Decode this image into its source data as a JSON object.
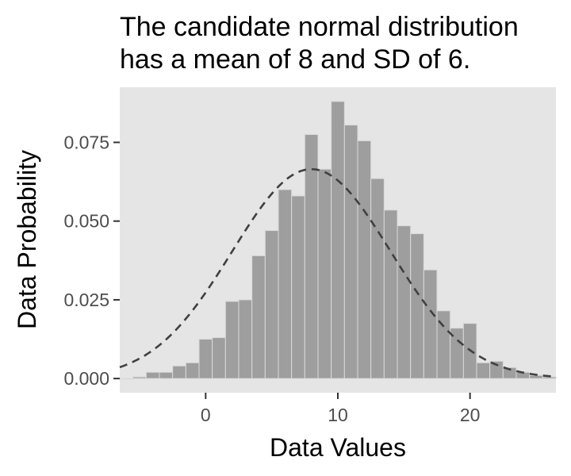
{
  "chart_data": {
    "type": "histogram",
    "title_lines": [
      "The candidate normal distribution",
      "has a mean of 8 and SD of 6."
    ],
    "xlabel": "Data Values",
    "ylabel": "Data Probability",
    "xlim": [
      -6.5,
      26.5
    ],
    "ylim": [
      -0.0045,
      0.0925
    ],
    "x_ticks": [
      0,
      10,
      20
    ],
    "x_tick_labels": [
      "0",
      "10",
      "20"
    ],
    "y_ticks": [
      0.0,
      0.025,
      0.05,
      0.075
    ],
    "y_tick_labels": [
      "0.000",
      "0.025",
      "0.050",
      "0.075"
    ],
    "grid": false,
    "bin_width": 1,
    "bins": [
      {
        "x": -6,
        "density": 0.0
      },
      {
        "x": -5,
        "density": 0.0005
      },
      {
        "x": -4,
        "density": 0.002
      },
      {
        "x": -3,
        "density": 0.002
      },
      {
        "x": -2,
        "density": 0.004
      },
      {
        "x": -1,
        "density": 0.005
      },
      {
        "x": 0,
        "density": 0.0125
      },
      {
        "x": 1,
        "density": 0.013
      },
      {
        "x": 2,
        "density": 0.0245
      },
      {
        "x": 3,
        "density": 0.025
      },
      {
        "x": 4,
        "density": 0.039
      },
      {
        "x": 5,
        "density": 0.047
      },
      {
        "x": 6,
        "density": 0.06
      },
      {
        "x": 7,
        "density": 0.058
      },
      {
        "x": 8,
        "density": 0.0775
      },
      {
        "x": 9,
        "density": 0.0665
      },
      {
        "x": 10,
        "density": 0.088
      },
      {
        "x": 11,
        "density": 0.0805
      },
      {
        "x": 12,
        "density": 0.0755
      },
      {
        "x": 13,
        "density": 0.0635
      },
      {
        "x": 14,
        "density": 0.0535
      },
      {
        "x": 15,
        "density": 0.0485
      },
      {
        "x": 16,
        "density": 0.046
      },
      {
        "x": 17,
        "density": 0.0345
      },
      {
        "x": 18,
        "density": 0.0215
      },
      {
        "x": 19,
        "density": 0.016
      },
      {
        "x": 20,
        "density": 0.0175
      },
      {
        "x": 21,
        "density": 0.005
      },
      {
        "x": 22,
        "density": 0.0055
      },
      {
        "x": 23,
        "density": 0.0035
      },
      {
        "x": 24,
        "density": 0.002
      },
      {
        "x": 25,
        "density": 0.001
      },
      {
        "x": 26,
        "density": 0.0005
      }
    ],
    "normal_curve": {
      "mean": 8,
      "sd": 6,
      "style": "dashed"
    },
    "colors": {
      "panel_background": "#e5e5e5",
      "bar_fill": "#9e9e9e",
      "bar_outline": "#d9d9d9",
      "curve": "#404040",
      "tick": "#333333"
    }
  }
}
